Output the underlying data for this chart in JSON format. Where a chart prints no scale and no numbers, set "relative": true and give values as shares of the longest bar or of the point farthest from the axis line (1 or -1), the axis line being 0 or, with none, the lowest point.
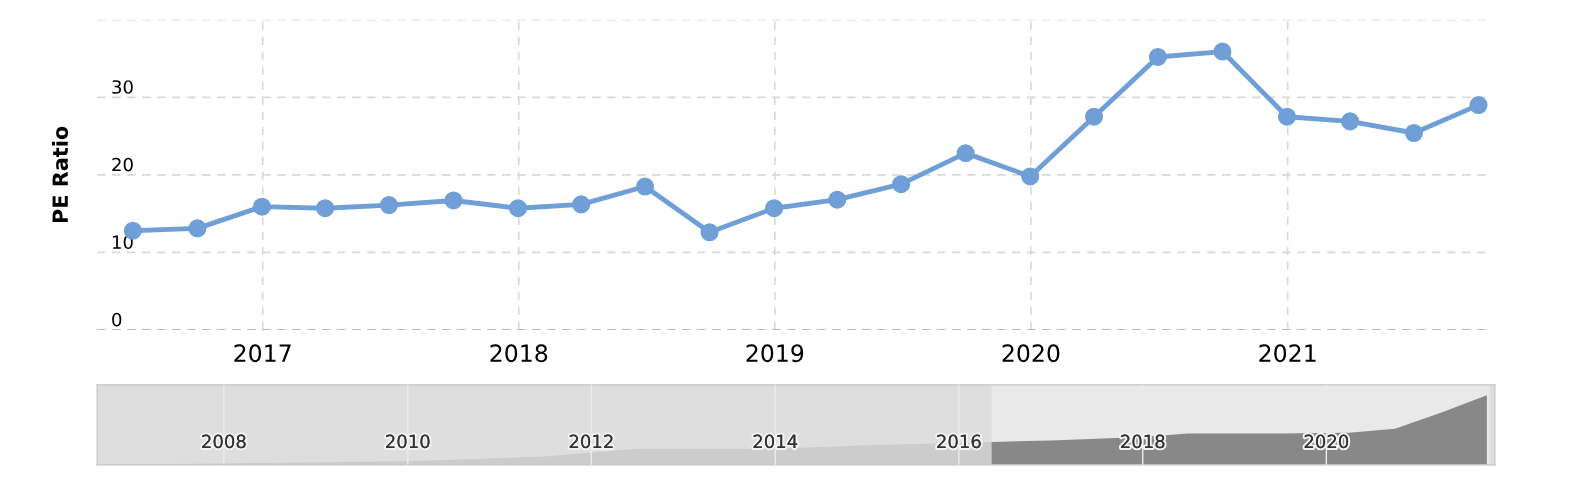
{
  "chart_data": [
    {
      "type": "line",
      "ylabel": "PE Ratio",
      "ylim": [
        0,
        40
      ],
      "yticks": [
        0,
        10,
        20,
        30,
        {
          "value": 40,
          "label": null
        }
      ],
      "xlim": [
        "2016-05-10",
        "2021-10-12"
      ],
      "xticks": [
        {
          "value": "2017-01-01",
          "label": "2017"
        },
        {
          "value": "2018-01-01",
          "label": "2018"
        },
        {
          "value": "2019-01-01",
          "label": "2019"
        },
        {
          "value": "2020-01-01",
          "label": "2020"
        },
        {
          "value": "2021-01-01",
          "label": "2021"
        }
      ],
      "grid": true,
      "marker": "circle",
      "line_style": "solid",
      "legend": false,
      "series": [
        {
          "color": "#6f9fd6",
          "x": [
            "2016-06-30",
            "2016-09-30",
            "2016-12-31",
            "2017-03-31",
            "2017-06-30",
            "2017-09-30",
            "2017-12-31",
            "2018-03-31",
            "2018-06-30",
            "2018-09-30",
            "2018-12-31",
            "2019-03-31",
            "2019-06-30",
            "2019-09-30",
            "2019-12-31",
            "2020-03-31",
            "2020-06-30",
            "2020-09-30",
            "2020-12-31",
            "2021-03-31",
            "2021-06-30",
            "2021-09-30"
          ],
          "values": [
            12.8,
            13.1,
            15.9,
            15.7,
            16.1,
            16.7,
            15.7,
            16.2,
            18.5,
            12.6,
            15.7,
            16.8,
            18.8,
            22.8,
            19.8,
            27.5,
            35.2,
            35.9,
            27.5,
            26.9,
            25.4,
            29.0
          ]
        }
      ]
    },
    {
      "type": "area",
      "relative": true,
      "xlim": [
        "2006-08-15",
        "2021-11-01"
      ],
      "xticks": [
        {
          "value": "2008-01-01",
          "label": "2008"
        },
        {
          "value": "2010-01-01",
          "label": "2010"
        },
        {
          "value": "2012-01-01",
          "label": "2012"
        },
        {
          "value": "2014-01-01",
          "label": "2014"
        },
        {
          "value": "2016-01-01",
          "label": "2016"
        },
        {
          "value": "2018-01-01",
          "label": "2018"
        },
        {
          "value": "2020-01-01",
          "label": "2020"
        }
      ],
      "grid": "x",
      "legend": false,
      "bands": [
        {
          "axis": "x",
          "from": "2016-05-10",
          "to": "2021-10-12",
          "color": "#e9e9e9"
        }
      ],
      "series": [
        {
          "color": "#cccccc",
          "x": [
            "2006-08-15",
            "2008-01-01",
            "2010-01-01",
            "2011-06-30",
            "2012-06-30",
            "2014-01-01",
            "2015-01-01",
            "2016-05-10"
          ],
          "values": [
            0.0,
            0.02,
            0.05,
            0.12,
            0.23,
            0.23,
            0.28,
            0.33
          ]
        },
        {
          "color": "#888888",
          "x": [
            "2016-05-10",
            "2017-01-01",
            "2017-12-31",
            "2018-06-30",
            "2019-06-30",
            "2020-03-31",
            "2020-09-30",
            "2021-03-31",
            "2021-09-30"
          ],
          "values": [
            0.33,
            0.35,
            0.4,
            0.45,
            0.45,
            0.46,
            0.52,
            0.75,
            1.0
          ]
        }
      ]
    }
  ]
}
